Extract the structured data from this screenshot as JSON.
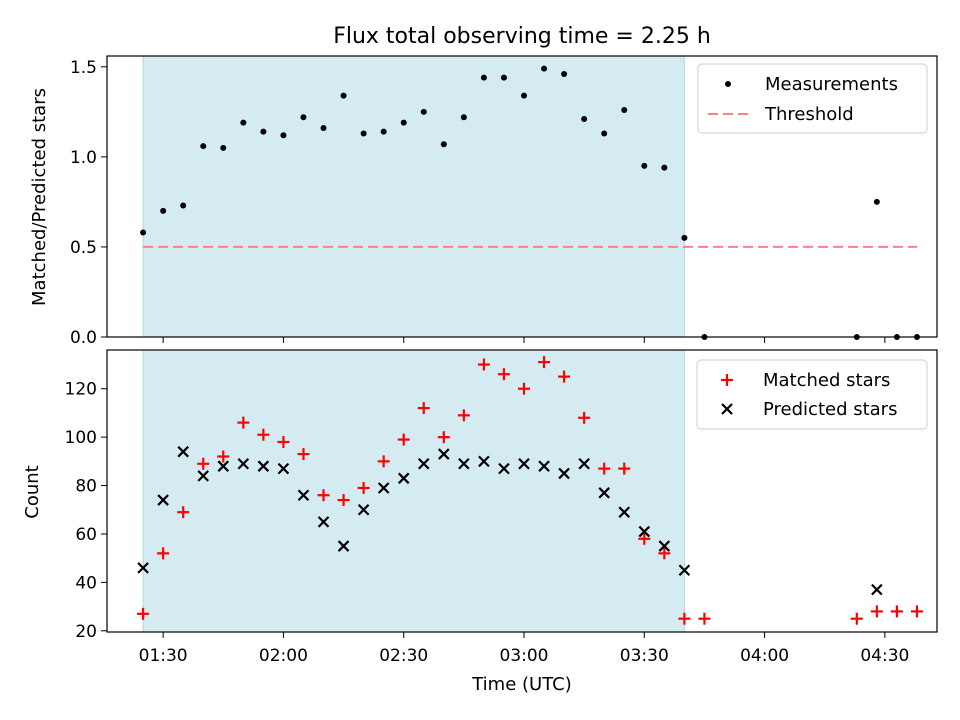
{
  "chart_data": [
    {
      "type": "scatter",
      "title": "Flux total observing time = 2.25 h",
      "xlabel": "",
      "ylabel": "Matched/Predicted stars",
      "xlim": [
        "01:16",
        "04:43"
      ],
      "ylim": [
        0,
        1.56
      ],
      "yticks": [
        0,
        0.5,
        1.0,
        1.5
      ],
      "ytick_labels": [
        "0.0",
        "0.5",
        "1.0",
        "1.5"
      ],
      "xticks": [
        "01:30",
        "02:00",
        "02:30",
        "03:00",
        "03:30",
        "04:00",
        "04:30"
      ],
      "shaded_span": [
        "01:25",
        "03:40"
      ],
      "legend": "upper-right",
      "legend_entries": [
        "Measurements",
        "Threshold"
      ],
      "colors": {
        "measurements": "#000000",
        "threshold": "#ff8080",
        "span": "#d4ebf1"
      },
      "threshold": {
        "value": 0.5,
        "x": [
          "01:25",
          "04:38"
        ]
      },
      "series": [
        {
          "name": "Measurements",
          "x": [
            "01:25",
            "01:30",
            "01:35",
            "01:40",
            "01:45",
            "01:50",
            "01:55",
            "02:00",
            "02:05",
            "02:10",
            "02:15",
            "02:20",
            "02:25",
            "02:30",
            "02:35",
            "02:40",
            "02:45",
            "02:50",
            "02:55",
            "03:00",
            "03:05",
            "03:10",
            "03:15",
            "03:20",
            "03:25",
            "03:30",
            "03:35",
            "03:40",
            "03:45",
            "04:23",
            "04:28",
            "04:33",
            "04:38"
          ],
          "y": [
            0.58,
            0.7,
            0.73,
            1.06,
            1.05,
            1.19,
            1.14,
            1.12,
            1.22,
            1.16,
            1.34,
            1.13,
            1.14,
            1.19,
            1.25,
            1.07,
            1.22,
            1.44,
            1.44,
            1.34,
            1.49,
            1.46,
            1.21,
            1.13,
            1.26,
            0.95,
            0.94,
            0.55,
            0.0,
            0.0,
            0.75,
            0.0,
            0.0
          ]
        }
      ]
    },
    {
      "type": "scatter",
      "title": "",
      "xlabel": "Time (UTC)",
      "ylabel": "Count",
      "xlim": [
        "01:16",
        "04:43"
      ],
      "ylim": [
        19.5,
        136
      ],
      "yticks": [
        20,
        40,
        60,
        80,
        100,
        120
      ],
      "xticks": [
        "01:30",
        "02:00",
        "02:30",
        "03:00",
        "03:30",
        "04:00",
        "04:30"
      ],
      "shaded_span": [
        "01:25",
        "03:40"
      ],
      "legend": "upper-right",
      "colors": {
        "matched": "#ff0000",
        "predicted": "#000000",
        "span": "#d4ebf1"
      },
      "series": [
        {
          "name": "Matched stars",
          "marker": "+",
          "x": [
            "01:25",
            "01:30",
            "01:35",
            "01:40",
            "01:45",
            "01:50",
            "01:55",
            "02:00",
            "02:05",
            "02:10",
            "02:15",
            "02:20",
            "02:25",
            "02:30",
            "02:35",
            "02:40",
            "02:45",
            "02:50",
            "02:55",
            "03:00",
            "03:05",
            "03:10",
            "03:15",
            "03:20",
            "03:25",
            "03:30",
            "03:35",
            "03:40",
            "03:45",
            "04:23",
            "04:28",
            "04:33",
            "04:38"
          ],
          "y": [
            27,
            52,
            69,
            89,
            92,
            106,
            101,
            98,
            93,
            76,
            74,
            79,
            90,
            99,
            112,
            100,
            109,
            130,
            126,
            120,
            131,
            125,
            108,
            87,
            87,
            58,
            52,
            25,
            25,
            25,
            28,
            28,
            28
          ]
        },
        {
          "name": "Predicted stars",
          "marker": "x",
          "x": [
            "01:25",
            "01:30",
            "01:35",
            "01:40",
            "01:45",
            "01:50",
            "01:55",
            "02:00",
            "02:05",
            "02:10",
            "02:15",
            "02:20",
            "02:25",
            "02:30",
            "02:35",
            "02:40",
            "02:45",
            "02:50",
            "02:55",
            "03:00",
            "03:05",
            "03:10",
            "03:15",
            "03:20",
            "03:25",
            "03:30",
            "03:35",
            "03:40",
            "04:28"
          ],
          "y": [
            46,
            74,
            94,
            84,
            88,
            89,
            88,
            87,
            76,
            65,
            55,
            70,
            79,
            83,
            89,
            93,
            89,
            90,
            87,
            89,
            88,
            85,
            89,
            77,
            69,
            61,
            55,
            45,
            37
          ]
        }
      ]
    }
  ]
}
